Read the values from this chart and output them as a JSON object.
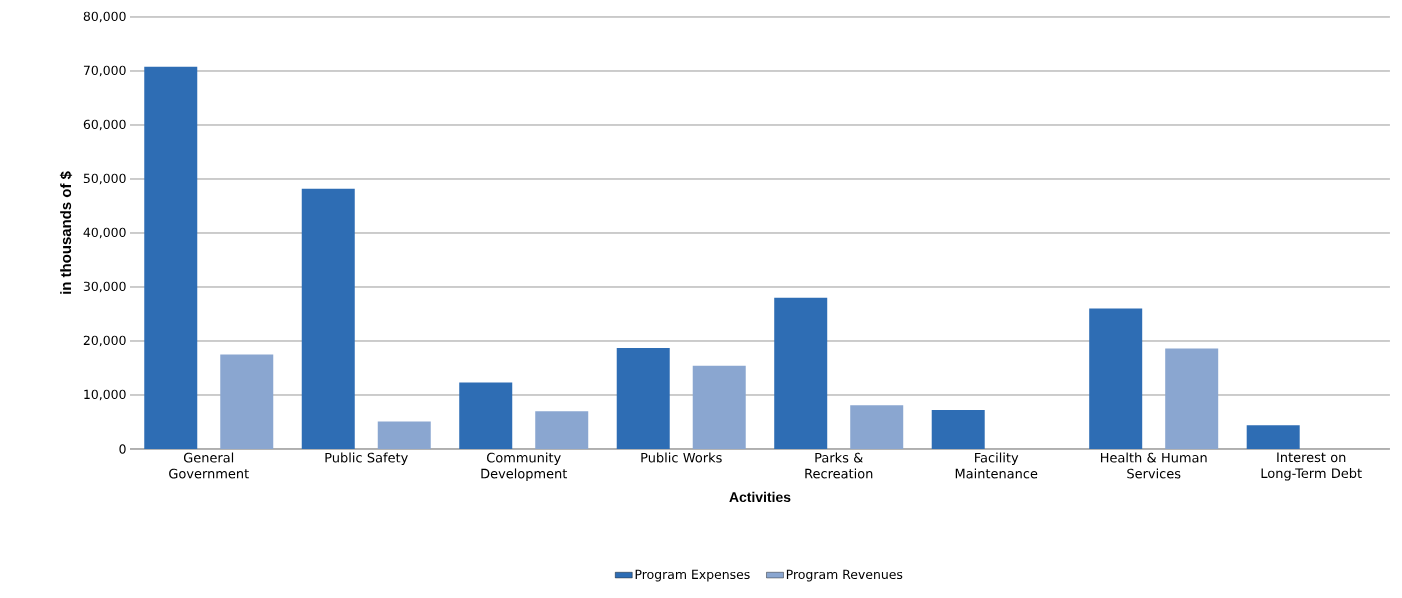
{
  "chart_data": {
    "type": "bar",
    "xlabel": "Activities",
    "ylabel": "in thousands of $",
    "categories": [
      "General Government",
      "Public Safety",
      "Community Development",
      "Public Works",
      "Parks & Recreation",
      "Facility Maintenance",
      "Health & Human Services",
      "Interest on Long-Term Debt"
    ],
    "series": [
      {
        "name": "Program Expenses",
        "color": "#2e6db4",
        "values": [
          70800,
          48200,
          12300,
          18700,
          28000,
          7200,
          26000,
          4400
        ]
      },
      {
        "name": "Program Revenues",
        "color": "#8aa6d0",
        "values": [
          17500,
          5100,
          7000,
          15400,
          8100,
          0,
          18600,
          0
        ]
      }
    ],
    "ylim": [
      0,
      80000
    ],
    "yticks": [
      0,
      {
        "value": 10000,
        "label": "10,000"
      },
      {
        "value": 20000,
        "label": "20,000"
      },
      {
        "value": 30000,
        "label": "30,000"
      },
      {
        "value": 40000,
        "label": "40,000"
      },
      {
        "value": 50000,
        "label": "50,000"
      },
      {
        "value": 60000,
        "label": "60,000"
      },
      {
        "value": 70000,
        "label": "70,000"
      },
      {
        "value": 80000,
        "label": "80,000"
      }
    ],
    "grid": "y",
    "legend": "bottom"
  }
}
